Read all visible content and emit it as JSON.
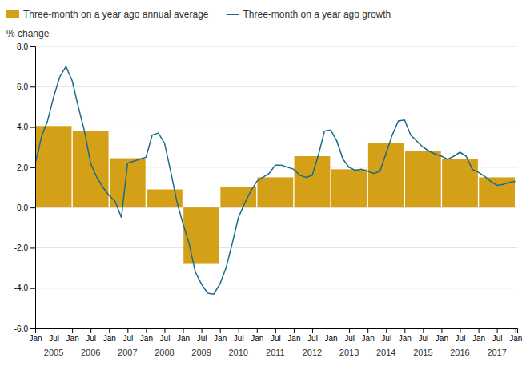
{
  "chart_data": {
    "type": "bar",
    "ylabel": "% change",
    "xlim": [
      2005.0,
      2018.05
    ],
    "xticks": [
      {
        "value": 2005.0,
        "label": "Jan"
      },
      {
        "value": 2005.5,
        "label": "Jul"
      },
      {
        "value": 2006.0,
        "label": "Jan"
      },
      {
        "value": 2006.5,
        "label": "Jul"
      },
      {
        "value": 2007.0,
        "label": "Jan"
      },
      {
        "value": 2007.5,
        "label": "Jul"
      },
      {
        "value": 2008.0,
        "label": "Jan"
      },
      {
        "value": 2008.5,
        "label": "Jul"
      },
      {
        "value": 2009.0,
        "label": "Jan"
      },
      {
        "value": 2009.5,
        "label": "Jul"
      },
      {
        "value": 2010.0,
        "label": "Jan"
      },
      {
        "value": 2010.5,
        "label": "Jul"
      },
      {
        "value": 2011.0,
        "label": "Jan"
      },
      {
        "value": 2011.5,
        "label": "Jul"
      },
      {
        "value": 2012.0,
        "label": "Jan"
      },
      {
        "value": 2012.5,
        "label": "Jul"
      },
      {
        "value": 2013.0,
        "label": "Jan"
      },
      {
        "value": 2013.5,
        "label": "Jul"
      },
      {
        "value": 2014.0,
        "label": "Jan"
      },
      {
        "value": 2014.5,
        "label": "Jul"
      },
      {
        "value": 2015.0,
        "label": "Jan"
      },
      {
        "value": 2015.5,
        "label": "Jul"
      },
      {
        "value": 2016.0,
        "label": "Jan"
      },
      {
        "value": 2016.5,
        "label": "Jul"
      },
      {
        "value": 2017.0,
        "label": "Jan"
      },
      {
        "value": 2017.5,
        "label": "Jul"
      },
      {
        "value": 2018.0,
        "label": "Jan"
      }
    ],
    "ylim": [
      -6.0,
      8.0
    ],
    "yticks": [
      {
        "value": -6.0,
        "label": "-6.0"
      },
      {
        "value": -4.0,
        "label": "-4.0"
      },
      {
        "value": -2.0,
        "label": "-2.0"
      },
      {
        "value": 0.0,
        "label": "0.0"
      },
      {
        "value": 2.0,
        "label": "2.0"
      },
      {
        "value": 4.0,
        "label": "4.0"
      },
      {
        "value": 6.0,
        "label": "6.0"
      },
      {
        "value": 8.0,
        "label": "8.0"
      }
    ],
    "grid": true,
    "legend": "upper left",
    "series": [
      {
        "name": "Three-month on a year ago annual average",
        "type": "bar",
        "color": "#D4A017",
        "x": [
          2005,
          2006,
          2007,
          2008,
          2009,
          2010,
          2011,
          2012,
          2013,
          2014,
          2015,
          2016,
          2017
        ],
        "categories": [
          "2005",
          "2006",
          "2007",
          "2008",
          "2009",
          "2010",
          "2011",
          "2012",
          "2013",
          "2014",
          "2015",
          "2016",
          "2017"
        ],
        "values": [
          4.05,
          3.8,
          2.45,
          0.9,
          -2.8,
          1.0,
          1.5,
          2.55,
          1.9,
          3.2,
          2.8,
          2.4,
          1.5
        ]
      },
      {
        "name": "Three-month on a year ago growth",
        "type": "line",
        "color": "#1B6A8A",
        "x": [
          2005.0,
          2005.083,
          2005.167,
          2005.333,
          2005.5,
          2005.667,
          2005.833,
          2006.0,
          2006.167,
          2006.333,
          2006.5,
          2006.667,
          2006.833,
          2007.0,
          2007.167,
          2007.333,
          2007.5,
          2007.667,
          2007.833,
          2008.0,
          2008.167,
          2008.333,
          2008.5,
          2008.667,
          2008.833,
          2009.0,
          2009.167,
          2009.333,
          2009.5,
          2009.667,
          2009.833,
          2010.0,
          2010.167,
          2010.333,
          2010.5,
          2010.667,
          2010.833,
          2011.0,
          2011.167,
          2011.333,
          2011.5,
          2011.667,
          2011.833,
          2012.0,
          2012.167,
          2012.333,
          2012.5,
          2012.667,
          2012.833,
          2013.0,
          2013.167,
          2013.333,
          2013.5,
          2013.667,
          2013.833,
          2014.0,
          2014.167,
          2014.333,
          2014.5,
          2014.667,
          2014.833,
          2015.0,
          2015.167,
          2015.333,
          2015.5,
          2015.667,
          2015.833,
          2016.0,
          2016.167,
          2016.333,
          2016.5,
          2016.667,
          2016.833,
          2017.0,
          2017.167,
          2017.333,
          2017.5,
          2017.667,
          2017.833,
          2018.0
        ],
        "values": [
          2.2,
          2.8,
          3.5,
          4.3,
          5.5,
          6.5,
          7.0,
          6.3,
          5.0,
          3.8,
          2.2,
          1.5,
          1.0,
          0.6,
          0.3,
          -0.5,
          2.2,
          2.3,
          2.4,
          2.5,
          3.6,
          3.7,
          3.2,
          1.8,
          0.3,
          -0.8,
          -1.8,
          -3.2,
          -3.8,
          -4.25,
          -4.3,
          -3.8,
          -3.0,
          -1.8,
          -0.5,
          0.2,
          0.8,
          1.3,
          1.5,
          1.7,
          2.1,
          2.1,
          2.0,
          1.9,
          1.6,
          1.5,
          1.6,
          2.6,
          3.8,
          3.85,
          3.3,
          2.4,
          2.0,
          1.85,
          1.9,
          1.8,
          1.7,
          1.8,
          2.7,
          3.6,
          4.3,
          4.35,
          3.6,
          3.3,
          3.0,
          2.8,
          2.65,
          2.55,
          2.4,
          2.55,
          2.75,
          2.55,
          1.9,
          1.75,
          1.55,
          1.3,
          1.1,
          1.15,
          1.25,
          1.3
        ]
      }
    ]
  }
}
